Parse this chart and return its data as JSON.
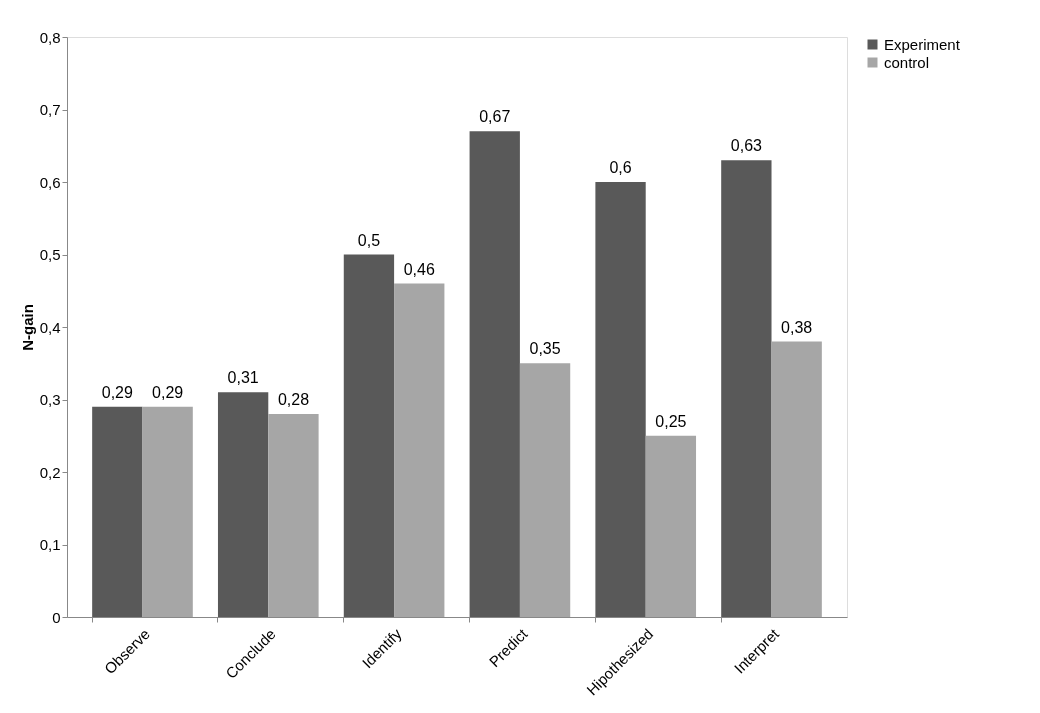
{
  "chart_data": {
    "type": "bar",
    "ylabel": "N-gain",
    "categories": [
      "Observe",
      "Conclude",
      "Identify",
      "Predict",
      "Hipothesized",
      "Interpret"
    ],
    "series": [
      {
        "name": "Experiment",
        "color": "#595959",
        "values": [
          0.29,
          0.31,
          0.5,
          0.67,
          0.6,
          0.63
        ],
        "value_labels": [
          "0,29",
          "0,31",
          "0,5",
          "0,67",
          "0,6",
          "0,63"
        ]
      },
      {
        "name": "control",
        "color": "#a6a6a6",
        "values": [
          0.29,
          0.28,
          0.46,
          0.35,
          0.25,
          0.38
        ],
        "value_labels": [
          "0,29",
          "0,28",
          "0,46",
          "0,35",
          "0,25",
          "0,38"
        ]
      }
    ],
    "ylim": [
      0,
      0.8
    ],
    "yticks": [
      0,
      {
        "value": 0.1,
        "label": "0,1"
      },
      {
        "value": 0.2,
        "label": "0,2"
      },
      {
        "value": 0.3,
        "label": "0,3"
      },
      {
        "value": 0.4,
        "label": "0,4"
      },
      {
        "value": 0.5,
        "label": "0,5"
      },
      {
        "value": 0.6,
        "label": "0,6"
      },
      {
        "value": 0.7,
        "label": "0,7"
      },
      {
        "value": 0.8,
        "label": "0,8"
      }
    ],
    "grid": false,
    "legend": "right"
  }
}
